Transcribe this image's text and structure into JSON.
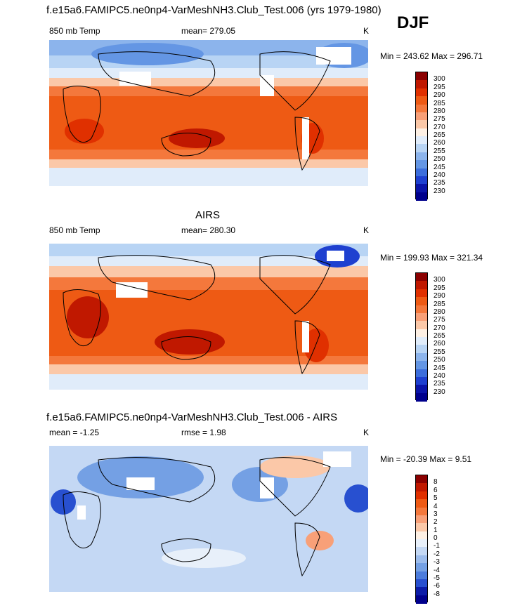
{
  "season": "DJF",
  "panels": [
    {
      "id": "model",
      "title": "f.e15a6.FAMIPC5.ne0np4-VarMeshNH3.Club_Test.006 (yrs 1979-1980)",
      "left_label": "850 mb Temp",
      "center_label": "mean= 279.05",
      "units": "K",
      "minmax": "Min = 243.62 Max = 296.71",
      "colorbar": {
        "labels": [
          "300",
          "295",
          "290",
          "285",
          "280",
          "275",
          "270",
          "265",
          "260",
          "255",
          "250",
          "245",
          "240",
          "235",
          "230"
        ],
        "colors": [
          "#8b0000",
          "#c01800",
          "#e03000",
          "#ee5a14",
          "#f4783c",
          "#f8a078",
          "#fbc8a8",
          "#fdf0e4",
          "#e0ecfa",
          "#b8d4f4",
          "#8cb4ec",
          "#6496e4",
          "#3c6edc",
          "#1e40d0",
          "#0a14a8",
          "#00008c"
        ]
      }
    },
    {
      "id": "obs",
      "title": "AIRS",
      "left_label": "850 mb Temp",
      "center_label": "mean= 280.30",
      "units": "K",
      "minmax": "Min = 199.93 Max = 321.34",
      "colorbar": {
        "labels": [
          "300",
          "295",
          "290",
          "285",
          "280",
          "275",
          "270",
          "265",
          "260",
          "255",
          "250",
          "245",
          "240",
          "235",
          "230"
        ],
        "colors": [
          "#8b0000",
          "#c01800",
          "#e03000",
          "#ee5a14",
          "#f4783c",
          "#f8a078",
          "#fbc8a8",
          "#fdf0e4",
          "#e0ecfa",
          "#b8d4f4",
          "#8cb4ec",
          "#6496e4",
          "#3c6edc",
          "#1e40d0",
          "#0a14a8",
          "#00008c"
        ]
      }
    },
    {
      "id": "diff",
      "title": "f.e15a6.FAMIPC5.ne0np4-VarMeshNH3.Club_Test.006 - AIRS",
      "left_label": "mean =  -1.25",
      "center_label": "rmse =   1.98",
      "units": "K",
      "minmax": "Min = -20.39 Max =   9.51",
      "colorbar": {
        "labels": [
          "8",
          "6",
          "5",
          "4",
          "3",
          "2",
          "1",
          "0",
          "-1",
          "-2",
          "-3",
          "-4",
          "-5",
          "-6",
          "-8"
        ],
        "colors": [
          "#8b0000",
          "#c01800",
          "#e03000",
          "#ee5a14",
          "#f4783c",
          "#f8a078",
          "#fbc8a8",
          "#fdf0e4",
          "#e8f0fa",
          "#c4d8f4",
          "#9cbcec",
          "#74a0e4",
          "#4c7cdc",
          "#2850d0",
          "#0c1ca8",
          "#00008c"
        ]
      }
    }
  ]
}
